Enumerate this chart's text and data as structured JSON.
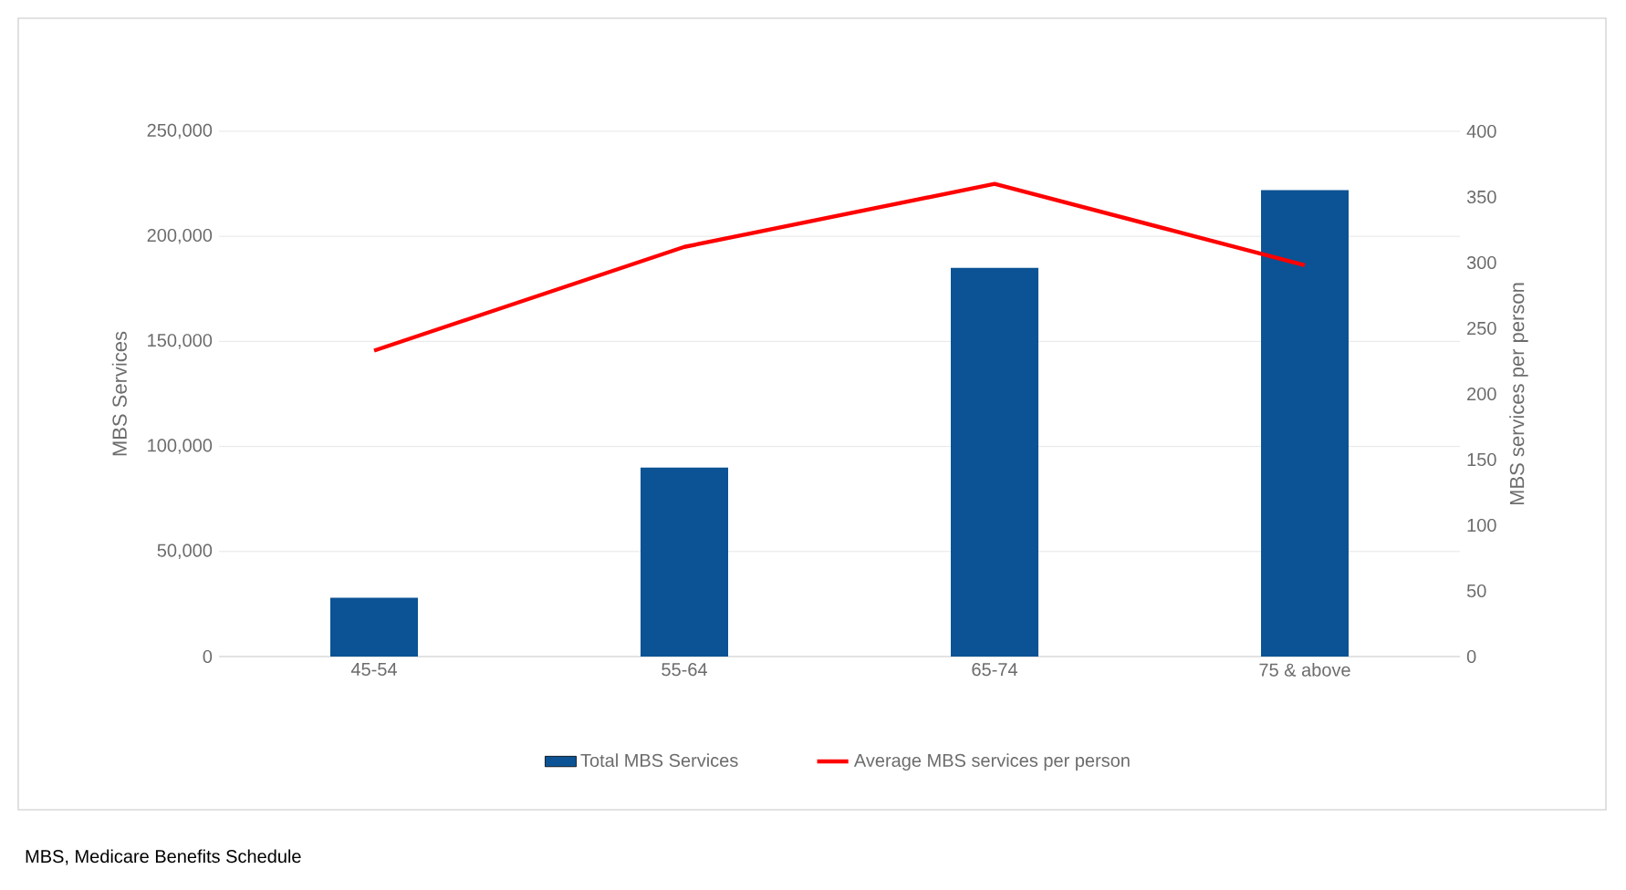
{
  "chart_data": {
    "type": "bar",
    "categories": [
      "45-54",
      "55-64",
      "65-74",
      "75 & above"
    ],
    "series": [
      {
        "name": "Total MBS Services",
        "color": "#0b5394",
        "values": [
          28000,
          90000,
          185000,
          222000
        ]
      },
      {
        "name": "Average MBS services per person",
        "type": "line",
        "axis": "y2",
        "color": "#ff0000",
        "values": [
          233,
          312,
          360,
          298
        ]
      }
    ],
    "ylabel": "MBS Services",
    "y2label": "MBS services per person",
    "ylim": [
      0,
      250000
    ],
    "yticks": [
      {
        "value": 0,
        "label": "0"
      },
      {
        "value": 50000,
        "label": "50,000"
      },
      {
        "value": 100000,
        "label": "100,000"
      },
      {
        "value": 150000,
        "label": "150,000"
      },
      {
        "value": 200000,
        "label": "200,000"
      },
      {
        "value": 250000,
        "label": "250,000"
      }
    ],
    "y2lim": [
      0,
      400
    ],
    "y2ticks": [
      0,
      50,
      100,
      150,
      200,
      250,
      300,
      350,
      400
    ],
    "grid": "y",
    "legend": "bottom",
    "marker": "none",
    "annotations": [
      "MBS, Medicare Benefits Schedule"
    ]
  }
}
